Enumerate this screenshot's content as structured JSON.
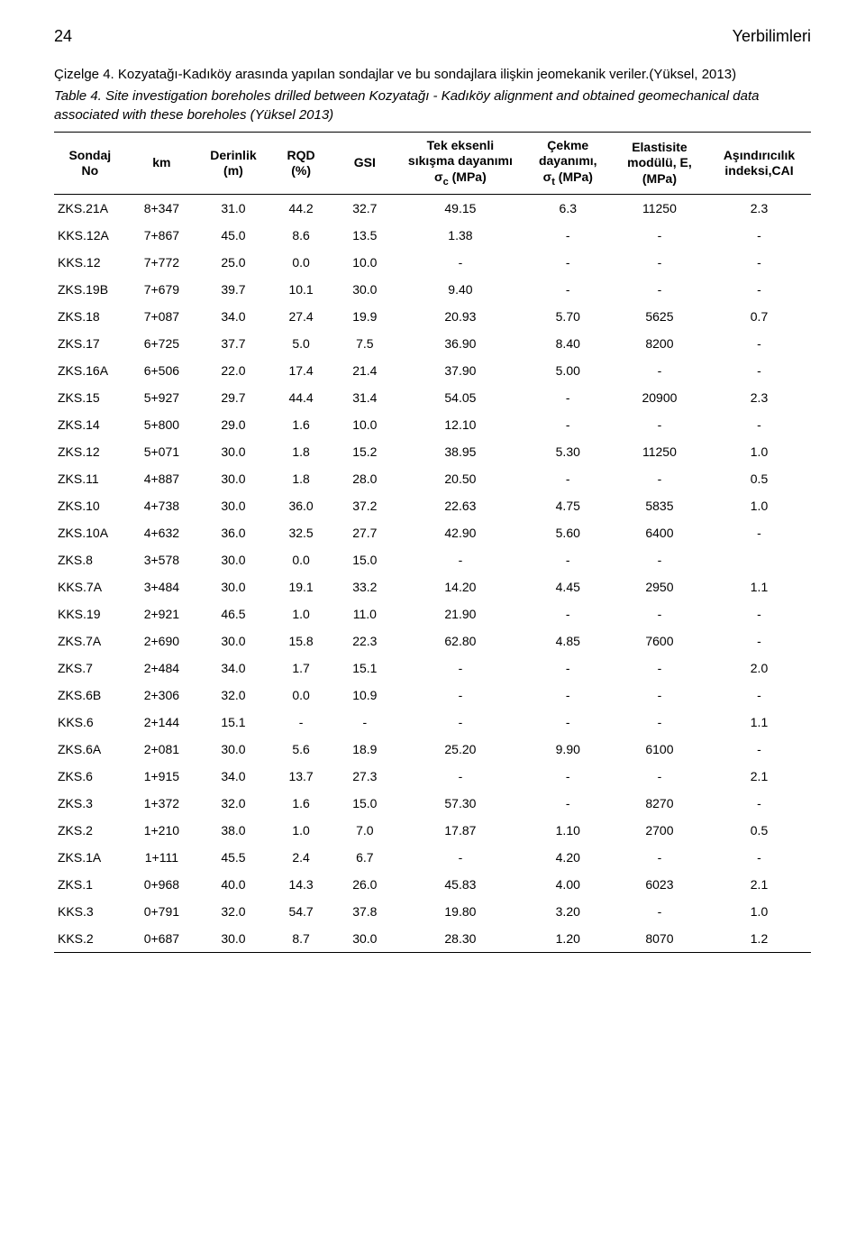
{
  "header": {
    "page_number": "24",
    "journal": "Yerbilimleri"
  },
  "captions": {
    "tr": "Çizelge 4. Kozyatağı-Kadıköy arasında yapılan sondajlar ve bu sondajlara ilişkin jeomekanik veriler.(Yüksel, 2013)",
    "en": "Table 4.   Site investigation boreholes drilled between Kozyatağı - Kadıköy alignment and obtained geomechanical data associated with these boreholes (Yüksel 2013)"
  },
  "table": {
    "columns": [
      {
        "key": "no",
        "label": "Sondaj\nNo",
        "width": "9%"
      },
      {
        "key": "km",
        "label": "km",
        "width": "9%"
      },
      {
        "key": "depth",
        "label": "Derinlik\n(m)",
        "width": "9%"
      },
      {
        "key": "rqd",
        "label": "RQD\n(%)",
        "width": "8%"
      },
      {
        "key": "gsi",
        "label": "GSI",
        "width": "8%"
      },
      {
        "key": "ucs",
        "label": "Tek eksenli\nsıkışma dayanımı\nσc (MPa)",
        "width": "16%"
      },
      {
        "key": "ten",
        "label": "Çekme\ndayanımı,\nσt (MPa)",
        "width": "11%"
      },
      {
        "key": "emod",
        "label": "Elastisite\nmodülü, E,\n(MPa)",
        "width": "12%"
      },
      {
        "key": "cai",
        "label": "Aşındırıcılık\nindeksi,CAI",
        "width": "13%"
      }
    ],
    "rows": [
      [
        "ZKS.21A",
        "8+347",
        "31.0",
        "44.2",
        "32.7",
        "49.15",
        "6.3",
        "11250",
        "2.3"
      ],
      [
        "KKS.12A",
        "7+867",
        "45.0",
        "8.6",
        "13.5",
        "1.38",
        "-",
        "-",
        "-"
      ],
      [
        "KKS.12",
        "7+772",
        "25.0",
        "0.0",
        "10.0",
        "-",
        "-",
        "-",
        "-"
      ],
      [
        "ZKS.19B",
        "7+679",
        "39.7",
        "10.1",
        "30.0",
        "9.40",
        "-",
        "-",
        "-"
      ],
      [
        "ZKS.18",
        "7+087",
        "34.0",
        "27.4",
        "19.9",
        "20.93",
        "5.70",
        "5625",
        "0.7"
      ],
      [
        "ZKS.17",
        "6+725",
        "37.7",
        "5.0",
        "7.5",
        "36.90",
        "8.40",
        "8200",
        "-"
      ],
      [
        "ZKS.16A",
        "6+506",
        "22.0",
        "17.4",
        "21.4",
        "37.90",
        "5.00",
        "-",
        "-"
      ],
      [
        "ZKS.15",
        "5+927",
        "29.7",
        "44.4",
        "31.4",
        "54.05",
        "-",
        "20900",
        "2.3"
      ],
      [
        "ZKS.14",
        "5+800",
        "29.0",
        "1.6",
        "10.0",
        "12.10",
        "-",
        "-",
        "-"
      ],
      [
        "ZKS.12",
        "5+071",
        "30.0",
        "1.8",
        "15.2",
        "38.95",
        "5.30",
        "11250",
        "1.0"
      ],
      [
        "ZKS.11",
        "4+887",
        "30.0",
        "1.8",
        "28.0",
        "20.50",
        "-",
        "-",
        "0.5"
      ],
      [
        "ZKS.10",
        "4+738",
        "30.0",
        "36.0",
        "37.2",
        "22.63",
        "4.75",
        "5835",
        "1.0"
      ],
      [
        "ZKS.10A",
        "4+632",
        "36.0",
        "32.5",
        "27.7",
        "42.90",
        "5.60",
        "6400",
        "-"
      ],
      [
        "ZKS.8",
        "3+578",
        "30.0",
        "0.0",
        "15.0",
        "-",
        "-",
        "-",
        ""
      ],
      [
        "KKS.7A",
        "3+484",
        "30.0",
        "19.1",
        "33.2",
        "14.20",
        "4.45",
        "2950",
        "1.1"
      ],
      [
        "KKS.19",
        "2+921",
        "46.5",
        "1.0",
        "11.0",
        "21.90",
        "-",
        "-",
        "-"
      ],
      [
        "ZKS.7A",
        "2+690",
        "30.0",
        "15.8",
        "22.3",
        "62.80",
        "4.85",
        "7600",
        "-"
      ],
      [
        "ZKS.7",
        "2+484",
        "34.0",
        "1.7",
        "15.1",
        "-",
        "-",
        "-",
        "2.0"
      ],
      [
        "ZKS.6B",
        "2+306",
        "32.0",
        "0.0",
        "10.9",
        "-",
        "-",
        "-",
        "-"
      ],
      [
        "KKS.6",
        "2+144",
        "15.1",
        "-",
        "-",
        "-",
        "-",
        "-",
        "1.1"
      ],
      [
        "ZKS.6A",
        "2+081",
        "30.0",
        "5.6",
        "18.9",
        "25.20",
        "9.90",
        "6100",
        "-"
      ],
      [
        "ZKS.6",
        "1+915",
        "34.0",
        "13.7",
        "27.3",
        "-",
        "-",
        "-",
        "2.1"
      ],
      [
        "ZKS.3",
        "1+372",
        "32.0",
        "1.6",
        "15.0",
        "57.30",
        "-",
        "8270",
        "-"
      ],
      [
        "ZKS.2",
        "1+210",
        "38.0",
        "1.0",
        "7.0",
        "17.87",
        "1.10",
        "2700",
        "0.5"
      ],
      [
        "ZKS.1A",
        "1+111",
        "45.5",
        "2.4",
        "6.7",
        "-",
        "4.20",
        "-",
        "-"
      ],
      [
        "ZKS.1",
        "0+968",
        "40.0",
        "14.3",
        "26.0",
        "45.83",
        "4.00",
        "6023",
        "2.1"
      ],
      [
        "KKS.3",
        "0+791",
        "32.0",
        "54.7",
        "37.8",
        "19.80",
        "3.20",
        "-",
        "1.0"
      ],
      [
        "KKS.2",
        "0+687",
        "30.0",
        "8.7",
        "30.0",
        "28.30",
        "1.20",
        "8070",
        "1.2"
      ]
    ]
  },
  "style": {
    "background_color": "#ffffff",
    "text_color": "#000000",
    "header_fontsize": 18,
    "caption_fontsize": 15,
    "table_fontsize": 14,
    "border_color": "#000000"
  }
}
